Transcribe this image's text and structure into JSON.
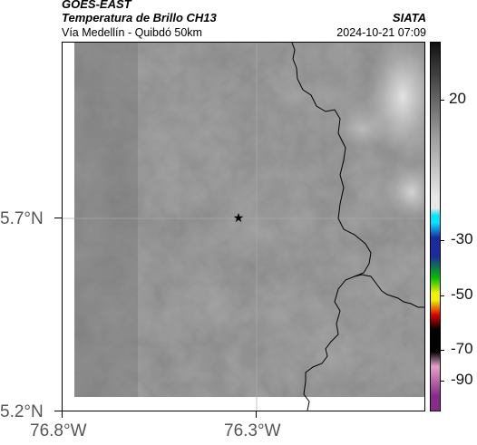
{
  "header": {
    "satellite": "GOES-EAST",
    "product": "Temperatura de Brillo CH13",
    "org": "SIATA",
    "route": "Vía Medellín - Quibdó 50km",
    "datetime": "2024-10-21 07:09"
  },
  "axes": {
    "lat_labels": [
      "5.7°N",
      "5.2°N"
    ],
    "lon_labels": [
      "76.8°W",
      "76.3°W"
    ]
  },
  "colorbar": {
    "tick_labels": [
      "20",
      "-30",
      "-50",
      "-70",
      "-90"
    ],
    "colors": {
      "dark": "#111111",
      "gray": "#9a9a9a",
      "light": "#e8e8e8",
      "cyan": "#00e5ff",
      "blue": "#1a2aa0",
      "green": "#00c000",
      "yellow": "#f0f000",
      "red": "#e00000",
      "black": "#000000",
      "pink": "#e8a0c8",
      "purple": "#8a2a8a"
    }
  },
  "map": {
    "marker_icon": "star-icon",
    "colors": {
      "field_base": "#8c8c8c",
      "field_dark": "#7a7a7a",
      "field_light": "#a8a8a8",
      "coast": "#000000",
      "gridline": "#aaaaaa"
    }
  }
}
